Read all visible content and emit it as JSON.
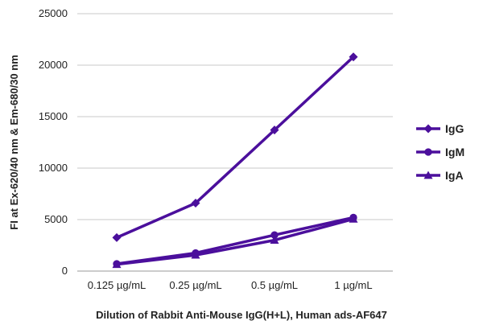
{
  "chart_data": {
    "type": "line",
    "title": "",
    "xlabel": "Dilution of Rabbit Anti-Mouse IgG(H+L), Human ads-AF647",
    "ylabel": "FI at Ex-620/40 nm & Em-680/30 nm",
    "categories": [
      "0.125 µg/mL",
      "0.25 µg/mL",
      "0.5 µg/mL",
      "1 µg/mL"
    ],
    "ylim": [
      0,
      25000
    ],
    "yticks": [
      0,
      5000,
      10000,
      15000,
      20000,
      25000
    ],
    "grid": true,
    "legend_position": "right",
    "color": "#4b0f9c",
    "series": [
      {
        "name": "IgG",
        "marker": "diamond",
        "values": [
          3250,
          6600,
          13700,
          20800
        ]
      },
      {
        "name": "IgM",
        "marker": "circle",
        "values": [
          700,
          1750,
          3500,
          5200
        ]
      },
      {
        "name": "IgA",
        "marker": "triangle",
        "values": [
          650,
          1550,
          3000,
          5050
        ]
      }
    ]
  }
}
